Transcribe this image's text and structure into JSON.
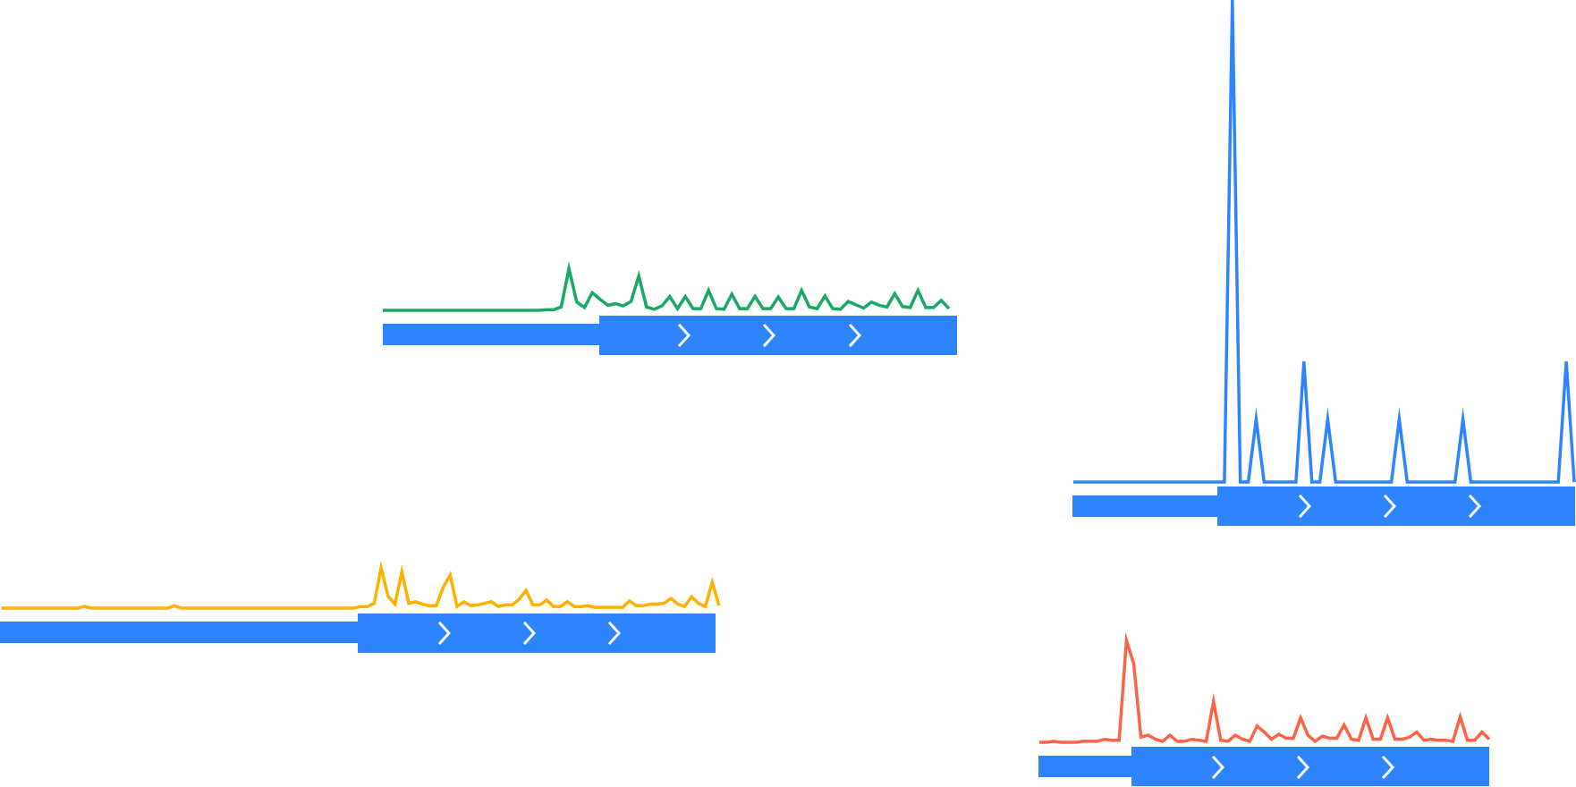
{
  "colors": {
    "bar": "#2e83ff",
    "chevron": "#ffffff",
    "background": "#ffffff"
  },
  "chart_data": [
    {
      "type": "line",
      "color": "#1aa865",
      "ylim": [
        0,
        10
      ],
      "values": [
        0,
        0,
        0,
        0,
        0,
        0,
        0,
        0,
        0,
        0,
        0,
        0,
        0,
        0,
        0,
        0,
        0,
        0,
        0,
        0,
        0,
        0.1,
        0.1,
        0.6,
        7.5,
        1.5,
        0.5,
        3.2,
        2.0,
        0.9,
        1.2,
        0.8,
        1.6,
        6.2,
        0.6,
        0.2,
        0.8,
        2.5,
        0.3,
        2.5,
        0.3,
        0.3,
        3.6,
        0.3,
        0.2,
        2.9,
        0.3,
        0.3,
        2.5,
        0.3,
        0.3,
        2.4,
        0.3,
        0.3,
        3.6,
        0.6,
        0.3,
        2.6,
        0.3,
        0.2,
        1.6,
        1.0,
        0.4,
        1.5,
        0.9,
        0.6,
        3.0,
        0.7,
        0.5,
        3.6,
        0.5,
        0.5,
        1.8,
        0.3
      ]
    },
    {
      "type": "line",
      "color": "#2e83ff",
      "ylim": [
        0,
        10
      ],
      "values": [
        0,
        0,
        0,
        0,
        0,
        0,
        0,
        0,
        0,
        0,
        0,
        0,
        0,
        0,
        0,
        0,
        0,
        0,
        0,
        0,
        10,
        0,
        0,
        1.3,
        0,
        0,
        0,
        0,
        0,
        2.5,
        0,
        0,
        1.3,
        0,
        0,
        0,
        0,
        0,
        0,
        0,
        0,
        1.3,
        0,
        0,
        0,
        0,
        0,
        0,
        0,
        1.3,
        0,
        0,
        0,
        0,
        0,
        0,
        0,
        0,
        0,
        0,
        0,
        0,
        2.5,
        0
      ]
    },
    {
      "type": "line",
      "color": "#ffb001",
      "ylim": [
        0,
        10
      ],
      "values": [
        0,
        0,
        0,
        0,
        0,
        0,
        0,
        0,
        0,
        0,
        0,
        0,
        0.2,
        0,
        0,
        0,
        0,
        0,
        0,
        0,
        0,
        0,
        0,
        0,
        0,
        0.3,
        0,
        0,
        0,
        0,
        0,
        0,
        0,
        0,
        0,
        0,
        0,
        0,
        0,
        0,
        0,
        0,
        0,
        0,
        0,
        0,
        0,
        0,
        0,
        0,
        0,
        0,
        0.2,
        0.2,
        0.6,
        5.0,
        1.5,
        0.5,
        4.5,
        0.6,
        0.8,
        0.5,
        0.3,
        0.3,
        2.6,
        4.1,
        0.2,
        0.8,
        0.3,
        0.4,
        0.6,
        0.8,
        0.2,
        0.4,
        0.4,
        1.1,
        2.2,
        0.4,
        0.4,
        1.0,
        0.2,
        0.2,
        0.8,
        0.2,
        0.2,
        0.3,
        0.1,
        0.1,
        0.1,
        0.1,
        0.1,
        0.9,
        0.3,
        0.3,
        0.5,
        0.5,
        0.6,
        1.2,
        0.5,
        0.2,
        1.4,
        0.6,
        0.2,
        3.2,
        0.3
      ]
    },
    {
      "type": "line",
      "color": "#ff6347",
      "ylim": [
        0,
        10
      ],
      "values": [
        0,
        0,
        0.1,
        0,
        0,
        0,
        0.1,
        0.1,
        0.1,
        0.3,
        0.2,
        0.2,
        10,
        7.7,
        0.5,
        0.7,
        0.3,
        0.1,
        0.7,
        0.1,
        0.1,
        0.3,
        0.2,
        0.1,
        4.0,
        0.2,
        0.1,
        0.7,
        0.3,
        0.1,
        1.6,
        1.0,
        0.3,
        0.8,
        0.4,
        0.4,
        2.4,
        0.7,
        0.1,
        0.6,
        0.4,
        0.4,
        1.7,
        0.3,
        0.2,
        2.4,
        0.3,
        0.3,
        2.4,
        0.3,
        0.3,
        0.5,
        1.0,
        0.2,
        0.3,
        0.2,
        0.2,
        0.1,
        2.5,
        0.2,
        0.2,
        1.0,
        0.3
      ]
    }
  ]
}
